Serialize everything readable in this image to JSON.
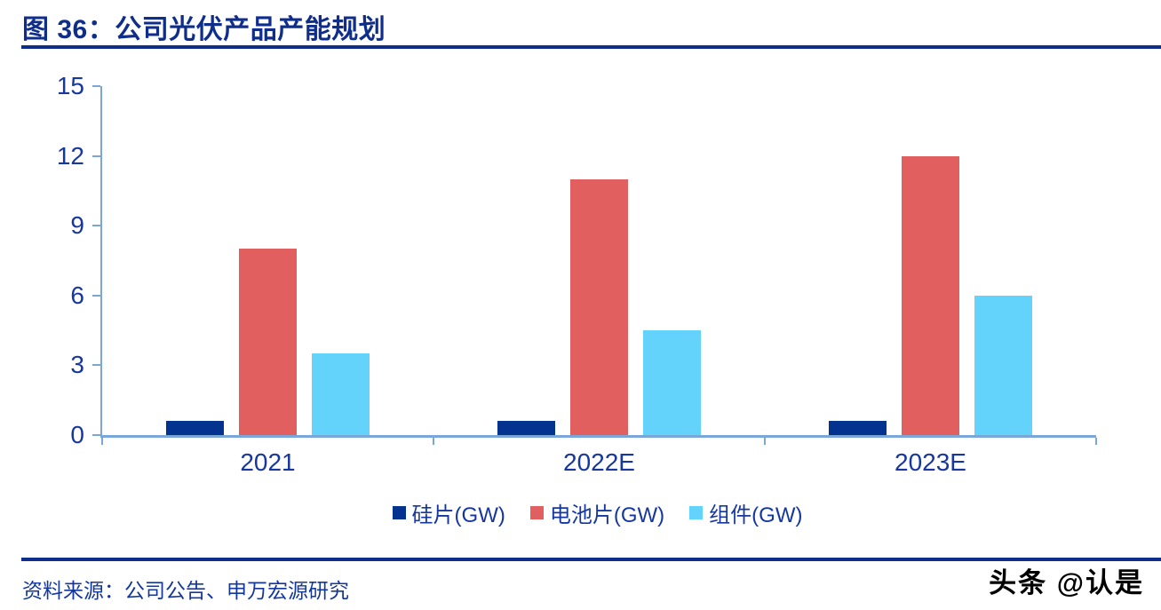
{
  "chart_data": {
    "type": "bar",
    "title": "图 36：公司光伏产品产能规划",
    "categories": [
      "2021",
      "2022E",
      "2023E"
    ],
    "series": [
      {
        "name": "硅片(GW)",
        "color": "#04338F",
        "values": [
          0.6,
          0.6,
          0.6
        ]
      },
      {
        "name": "电池片(GW)",
        "color": "#E25F60",
        "values": [
          8.0,
          11.0,
          12.0
        ]
      },
      {
        "name": "组件(GW)",
        "color": "#63D3FC",
        "values": [
          3.5,
          4.5,
          6.0
        ]
      }
    ],
    "xlabel": "",
    "ylabel": "",
    "ylim": [
      0,
      15
    ],
    "yticks": [
      0,
      3,
      6,
      9,
      12,
      15
    ],
    "grid": false,
    "legend_position": "bottom",
    "axis_color": "#7BA7D8",
    "tick_label_color": "#16379E",
    "title_color": "#0F2E8C"
  },
  "footer": {
    "source": "资料来源：公司公告、申万宏源研究"
  },
  "watermark": {
    "text": "头条 @认是"
  }
}
